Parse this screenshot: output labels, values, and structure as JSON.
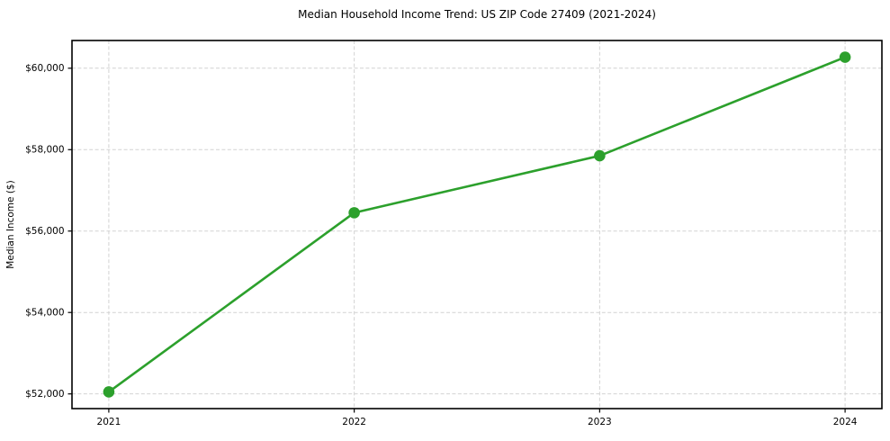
{
  "chart_data": {
    "type": "line",
    "title": "Median Household Income Trend: US ZIP Code 27409 (2021-2024)",
    "xlabel": "",
    "ylabel": "Median Income ($)",
    "x": [
      2021,
      2022,
      2023,
      2024
    ],
    "series": [
      {
        "name": "Median Household Income",
        "values": [
          52050,
          56450,
          57850,
          60270
        ]
      }
    ],
    "xticks": [
      2021,
      2022,
      2023,
      2024
    ],
    "xtick_labels": [
      "2021",
      "2022",
      "2023",
      "2024"
    ],
    "yticks": [
      52000,
      54000,
      56000,
      58000,
      60000
    ],
    "ytick_labels": [
      "$52,000",
      "$54,000",
      "$56,000",
      "$58,000",
      "$60,000"
    ],
    "xlim": [
      2020.85,
      2024.15
    ],
    "ylim": [
      51639,
      60681
    ],
    "grid": true,
    "grid_style": "dashed",
    "legend": false,
    "colors": {
      "line": "#2ca02c",
      "marker": "#2ca02c",
      "grid": "#d2d2d2",
      "spine": "#000000",
      "background": "#ffffff",
      "text": "#000000"
    },
    "marker": "circle",
    "marker_radius": 6.3,
    "line_width": 2.6
  }
}
